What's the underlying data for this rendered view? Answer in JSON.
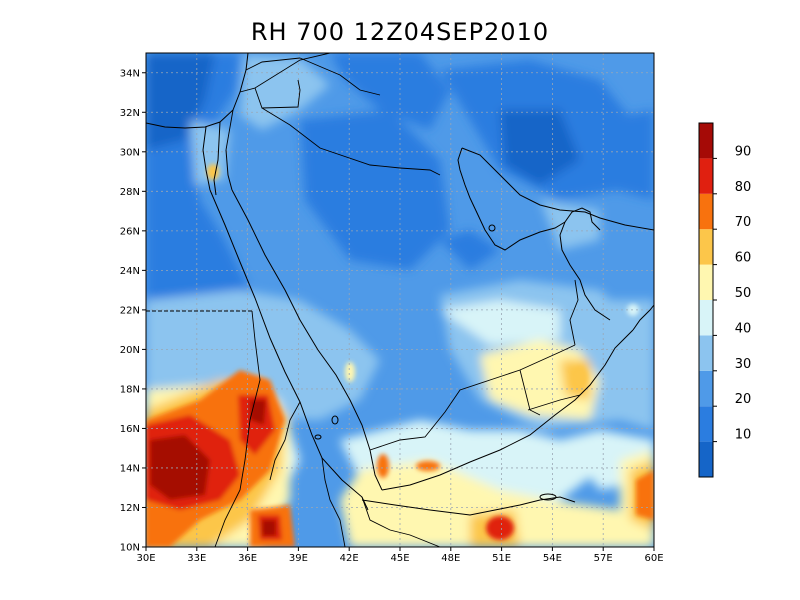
{
  "title": "RH 700 12Z04SEP2010",
  "map": {
    "lon_range": [
      30,
      60
    ],
    "lat_range": [
      10,
      35
    ],
    "lat_ticks": [
      {
        "value": 10,
        "label": "10N"
      },
      {
        "value": 12,
        "label": "12N"
      },
      {
        "value": 14,
        "label": "14N"
      },
      {
        "value": 16,
        "label": "16N"
      },
      {
        "value": 18,
        "label": "18N"
      },
      {
        "value": 20,
        "label": "20N"
      },
      {
        "value": 22,
        "label": "22N"
      },
      {
        "value": 24,
        "label": "24N"
      },
      {
        "value": 26,
        "label": "26N"
      },
      {
        "value": 28,
        "label": "28N"
      },
      {
        "value": 30,
        "label": "30N"
      },
      {
        "value": 32,
        "label": "32N"
      },
      {
        "value": 34,
        "label": "34N"
      }
    ],
    "lon_ticks": [
      {
        "value": 30,
        "label": "30E"
      },
      {
        "value": 33,
        "label": "33E"
      },
      {
        "value": 36,
        "label": "36E"
      },
      {
        "value": 39,
        "label": "39E"
      },
      {
        "value": 42,
        "label": "42E"
      },
      {
        "value": 45,
        "label": "45E"
      },
      {
        "value": 48,
        "label": "48E"
      },
      {
        "value": 51,
        "label": "51E"
      },
      {
        "value": 54,
        "label": "54E"
      },
      {
        "value": 57,
        "label": "57E"
      },
      {
        "value": 60,
        "label": "60E"
      }
    ],
    "grid": true
  },
  "colorbar": {
    "levels": [
      "",
      "10",
      "20",
      "30",
      "40",
      "50",
      "60",
      "70",
      "80",
      "90"
    ],
    "colors": [
      "#1565c8",
      "#2b7de0",
      "#4f9ae8",
      "#8cc4ef",
      "#d8f4f8",
      "#fff7b0",
      "#fcc64a",
      "#f8720e",
      "#e02010",
      "#a50a06"
    ]
  },
  "chart_data": {
    "type": "heatmap",
    "title": "RH 700 12Z04SEP2010",
    "x_range": [
      30,
      60
    ],
    "y_range": [
      10,
      35
    ],
    "colorbar_levels": [
      10,
      20,
      30,
      40,
      50,
      60,
      70,
      80,
      90
    ],
    "regions": [
      {
        "lon": [
          30,
          35
        ],
        "lat": [
          13,
          16
        ],
        "value": 95
      },
      {
        "lon": [
          36,
          37.5
        ],
        "lat": [
          15,
          18
        ],
        "value": 90
      },
      {
        "lon": [
          38,
          38.5
        ],
        "lat": [
          10.5,
          11.5
        ],
        "value": 90
      },
      {
        "lon": [
          44,
          44.5
        ],
        "lat": [
          13.5,
          14
        ],
        "value": 75
      },
      {
        "lon": [
          51,
          51.5
        ],
        "lat": [
          10.5,
          11.5
        ],
        "value": 80
      },
      {
        "lon": [
          33.5,
          34
        ],
        "lat": [
          28.5,
          29.5
        ],
        "value": 60
      },
      {
        "lon": [
          47,
          58
        ],
        "lat": [
          16,
          20
        ],
        "value": 50
      },
      {
        "lon": [
          38,
          55
        ],
        "lat": [
          21,
          29
        ],
        "value": 25
      },
      {
        "lon": [
          50,
          56
        ],
        "lat": [
          27,
          30
        ],
        "value": 15
      }
    ]
  }
}
